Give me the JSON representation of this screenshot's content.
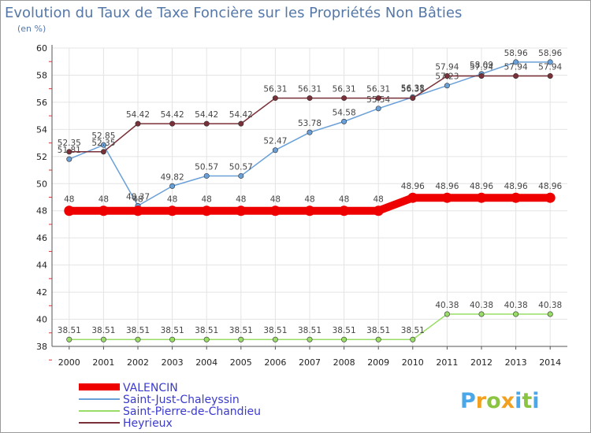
{
  "chart_data": {
    "type": "line",
    "title": "Evolution du Taux de Taxe Foncière sur les Propriétés Non Bâties",
    "ylabel": "(en %)",
    "xlabel": "",
    "x": [
      "2000",
      "2001",
      "2002",
      "2003",
      "2004",
      "2005",
      "2006",
      "2007",
      "2008",
      "2009",
      "2010",
      "2011",
      "2012",
      "2013",
      "2014"
    ],
    "ylim": [
      38,
      60
    ],
    "yticks": [
      "38",
      "40",
      "42",
      "44",
      "46",
      "48",
      "50",
      "52",
      "54",
      "56",
      "58",
      "60"
    ],
    "grid": true,
    "legend_position": "bottom-left",
    "series": [
      {
        "name": "VALENCIN",
        "color": "#ee0000",
        "values": [
          48,
          48,
          48,
          48,
          48,
          48,
          48,
          48,
          48,
          48,
          48.96,
          48.96,
          48.96,
          48.96,
          48.96
        ],
        "labels": [
          "48",
          "48",
          "48",
          "48",
          "48",
          "48",
          "48",
          "48",
          "48",
          "48",
          "48.96",
          "48.96",
          "48.96",
          "48.96",
          "48.96"
        ]
      },
      {
        "name": "Saint-Just-Chaleyssin",
        "color": "#6aa0d8",
        "values": [
          51.81,
          52.85,
          48.37,
          49.82,
          50.57,
          50.57,
          52.47,
          53.78,
          54.58,
          55.54,
          56.38,
          57.23,
          58.09,
          58.96,
          58.96
        ],
        "labels": [
          "51.81",
          "52.85",
          "48.37",
          "49.82",
          "50.57",
          "50.57",
          "52.47",
          "53.78",
          "54.58",
          "55.54",
          "56.38",
          "57.23",
          "58.09",
          "58.96",
          "58.96"
        ]
      },
      {
        "name": "Saint-Pierre-de-Chandieu",
        "color": "#99dd66",
        "values": [
          38.51,
          38.51,
          38.51,
          38.51,
          38.51,
          38.51,
          38.51,
          38.51,
          38.51,
          38.51,
          38.51,
          40.38,
          40.38,
          40.38,
          40.38
        ],
        "labels": [
          "38.51",
          "38.51",
          "38.51",
          "38.51",
          "38.51",
          "38.51",
          "38.51",
          "38.51",
          "38.51",
          "38.51",
          "38.51",
          "40.38",
          "40.38",
          "40.38",
          "40.38"
        ]
      },
      {
        "name": "Heyrieux",
        "color": "#7a3038",
        "values": [
          52.35,
          52.35,
          54.42,
          54.42,
          54.42,
          54.42,
          56.31,
          56.31,
          56.31,
          56.31,
          56.31,
          57.94,
          57.94,
          57.94,
          57.94
        ],
        "labels": [
          "52.35",
          "52.35",
          "54.42",
          "54.42",
          "54.42",
          "54.42",
          "56.31",
          "56.31",
          "56.31",
          "56.31",
          "56.31",
          "57.94",
          "57.94",
          "57.94",
          "57.94"
        ]
      }
    ]
  },
  "brand": {
    "letters": [
      "P",
      "r",
      "o",
      "x",
      "i",
      "t",
      "i"
    ],
    "colors": [
      "#4aa8e8",
      "#f2a020",
      "#8ac440",
      "#f2a020",
      "#4aa8e8",
      "#8ac440",
      "#4aa8e8"
    ]
  }
}
